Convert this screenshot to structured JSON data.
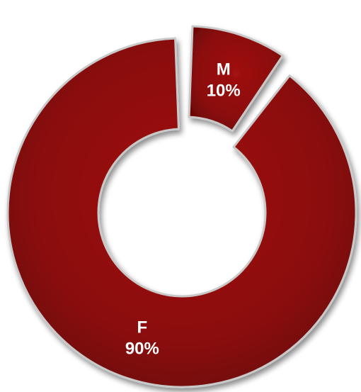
{
  "chart_data": {
    "type": "pie",
    "variant": "donut",
    "exploded_slice": "M",
    "slices": [
      {
        "name": "M",
        "percent_label": "10%",
        "value": 10
      },
      {
        "name": "F",
        "percent_label": "90%",
        "value": 90
      }
    ],
    "colors": {
      "slice_fill": "#8b0a0a",
      "slice_edge": "#c9c9c9",
      "label_text": "#ffffff"
    }
  }
}
